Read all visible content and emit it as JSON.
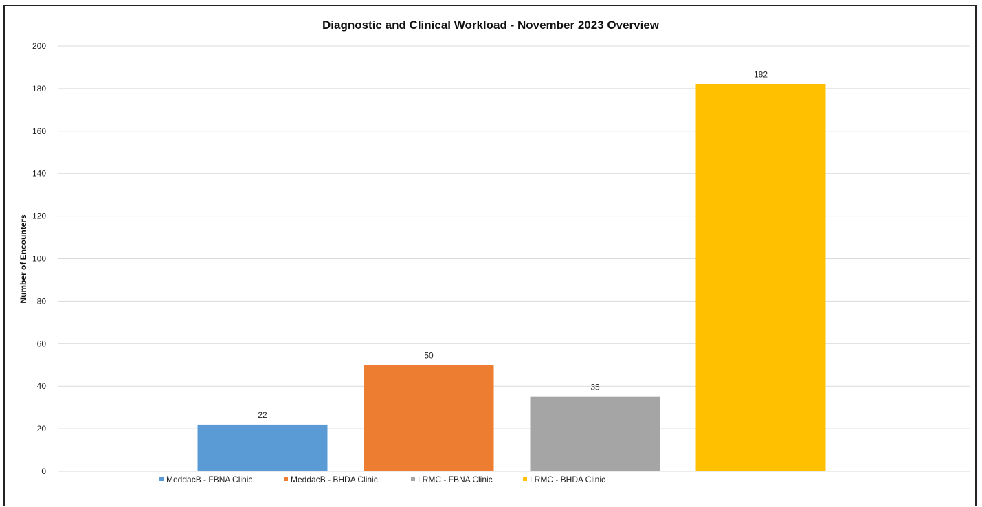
{
  "chart_data": {
    "type": "bar",
    "title": "Diagnostic and Clinical Workload - November 2023 Overview",
    "xlabel": "",
    "ylabel": "Number of Encounters",
    "ylim": [
      0,
      200
    ],
    "yticks": [
      0,
      20,
      40,
      60,
      80,
      100,
      120,
      140,
      160,
      180,
      200
    ],
    "grid": true,
    "legend_position": "bottom",
    "categories": [
      "MeddacB - FBNA Clinic",
      "MeddacB - BHDA Clinic",
      "LRMC - FBNA Clinic",
      "LRMC - BHDA Clinic"
    ],
    "values": [
      22,
      50,
      35,
      182
    ],
    "colors": [
      "#5b9bd5",
      "#ed7d31",
      "#a5a5a5",
      "#ffc000"
    ],
    "data_labels": [
      "22",
      "50",
      "35",
      "182"
    ]
  }
}
